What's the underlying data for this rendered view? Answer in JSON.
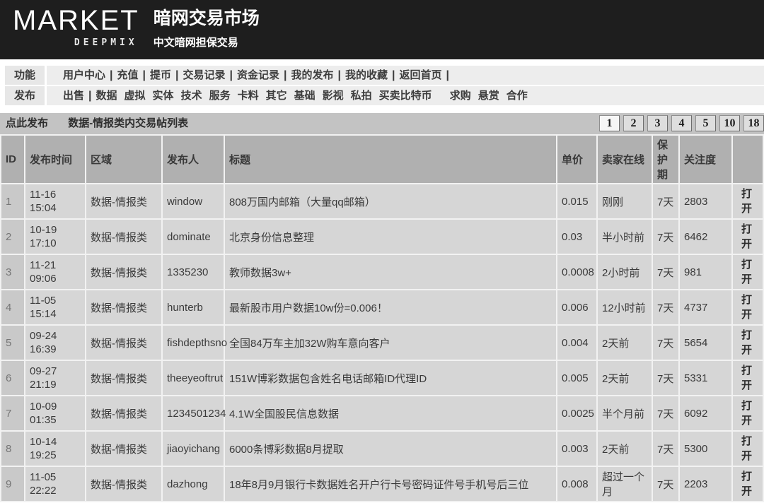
{
  "header": {
    "logo": "MARKET",
    "logo_sub": "DEEPMIX",
    "title": "暗网交易市场",
    "subtitle": "中文暗网担保交易"
  },
  "nav_function": {
    "label": "功能",
    "items": [
      "用户中心",
      "充值",
      "提币",
      "交易记录",
      "资金记录",
      "我的发布",
      "我的收藏",
      "返回首页"
    ]
  },
  "nav_publish": {
    "label": "发布",
    "items": [
      "出售",
      "数据",
      "虚拟",
      "实体",
      "技术",
      "服务",
      "卡料",
      "其它",
      "基础",
      "影视",
      "私拍",
      "买卖比特币",
      "求购",
      "悬赏",
      "合作"
    ],
    "pipe_after": [
      0
    ],
    "gap_before": [
      "求购"
    ]
  },
  "toolbar": {
    "publish_label": "点此发布",
    "list_title": "数据-情报类内交易帖列表",
    "pages": [
      "1",
      "2",
      "3",
      "4",
      "5",
      "10",
      "18"
    ],
    "active_page": "1"
  },
  "table": {
    "columns": [
      "ID",
      "发布时间",
      "区域",
      "发布人",
      "标题",
      "单价",
      "卖家在线",
      "保护期",
      "关注度",
      ""
    ],
    "column_keys": [
      "id",
      "time",
      "area",
      "seller",
      "title",
      "price",
      "online",
      "protect",
      "views",
      "open"
    ],
    "open_label": "打开",
    "rows": [
      {
        "id": "1",
        "date": "11-16",
        "clock": "15:04",
        "area": "数据-情报类",
        "seller": "window",
        "title": "808万国内邮箱（大量qq邮箱）",
        "price": "0.015",
        "online": "刚刚",
        "protect": "7天",
        "views": "2803"
      },
      {
        "id": "2",
        "date": "10-19",
        "clock": "17:10",
        "area": "数据-情报类",
        "seller": "dominate",
        "title": "北京身份信息整理",
        "price": "0.03",
        "online": "半小时前",
        "protect": "7天",
        "views": "6462"
      },
      {
        "id": "3",
        "date": "11-21",
        "clock": "09:06",
        "area": "数据-情报类",
        "seller": "1335230",
        "title": "教师数据3w+",
        "price": "0.0008",
        "online": "2小时前",
        "protect": "7天",
        "views": "981"
      },
      {
        "id": "4",
        "date": "11-05",
        "clock": "15:14",
        "area": "数据-情报类",
        "seller": "hunterb",
        "title": "最新股市用户数据10w份=0.006！",
        "price": "0.006",
        "online": "12小时前",
        "protect": "7天",
        "views": "4737"
      },
      {
        "id": "5",
        "date": "09-24",
        "clock": "16:39",
        "area": "数据-情报类",
        "seller": "fishdepthsno",
        "title": "全国84万车主加32W购车意向客户",
        "price": "0.004",
        "online": "2天前",
        "protect": "7天",
        "views": "5654"
      },
      {
        "id": "6",
        "date": "09-27",
        "clock": "21:19",
        "area": "数据-情报类",
        "seller": "theeyeoftrut",
        "title": "151W博彩数据包含姓名电话邮箱ID代理ID",
        "price": "0.005",
        "online": "2天前",
        "protect": "7天",
        "views": "5331"
      },
      {
        "id": "7",
        "date": "10-09",
        "clock": "01:35",
        "area": "数据-情报类",
        "seller": "1234501234",
        "title": "4.1W全国股民信息数据",
        "price": "0.0025",
        "online": "半个月前",
        "protect": "7天",
        "views": "6092"
      },
      {
        "id": "8",
        "date": "10-14",
        "clock": "19:25",
        "area": "数据-情报类",
        "seller": "jiaoyichang",
        "title": "6000条博彩数据8月提取",
        "price": "0.003",
        "online": "2天前",
        "protect": "7天",
        "views": "5300"
      },
      {
        "id": "9",
        "date": "11-05",
        "clock": "22:22",
        "area": "数据-情报类",
        "seller": "dazhong",
        "title": "18年8月9月银行卡数据姓名开户行卡号密码证件号手机号后三位",
        "price": "0.008",
        "online": "超过一个月",
        "protect": "7天",
        "views": "2203"
      }
    ]
  },
  "colors": {
    "header_bg": "#1e1e1e",
    "nav_bg": "#ededed",
    "toolbar_bg": "#c3c3c3",
    "table_head_bg": "#b0b0b0",
    "row_bg": "#d6d6d6",
    "row_id_bg": "#c9c9c9",
    "text": "#3a3a3a"
  }
}
